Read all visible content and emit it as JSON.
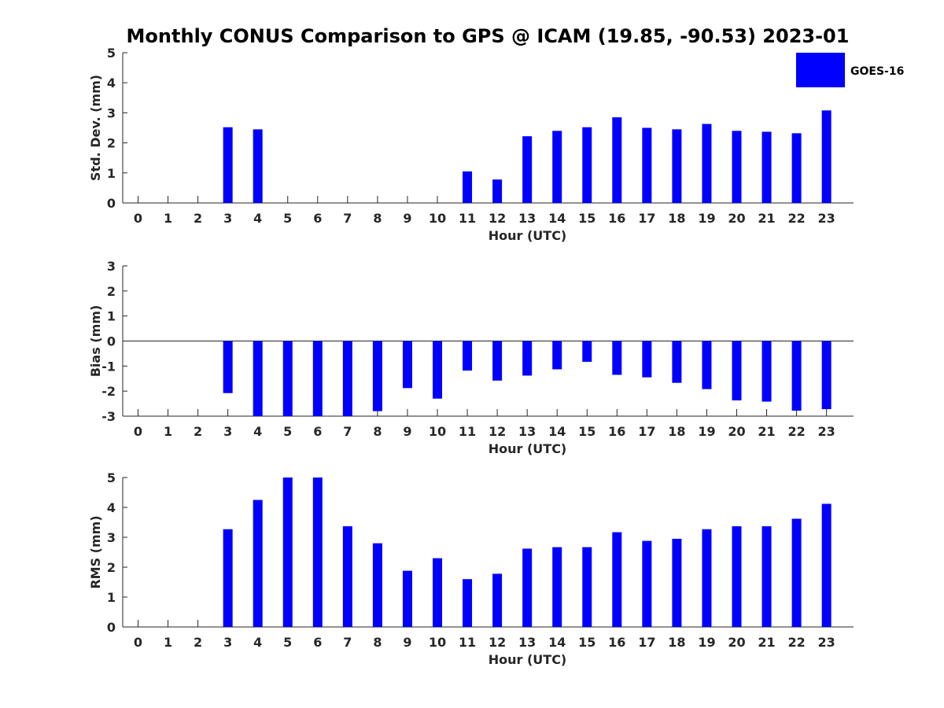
{
  "chart_data": [
    {
      "type": "bar",
      "title": "Monthly CONUS Comparison to GPS @ ICAM (19.85, -90.53) 2023-01",
      "xlabel": "Hour (UTC)",
      "ylabel": "Std. Dev. (mm)",
      "ylim": [
        0,
        5
      ],
      "yticks": [
        0,
        1,
        2,
        3,
        4,
        5
      ],
      "categories": [
        "0",
        "1",
        "2",
        "3",
        "4",
        "5",
        "6",
        "7",
        "8",
        "9",
        "10",
        "11",
        "12",
        "13",
        "14",
        "15",
        "16",
        "17",
        "18",
        "19",
        "20",
        "21",
        "22",
        "23"
      ],
      "series": [
        {
          "name": "GOES-16",
          "color": "#0000ff",
          "values": [
            null,
            null,
            null,
            2.52,
            2.45,
            null,
            null,
            null,
            null,
            null,
            null,
            1.05,
            0.78,
            2.22,
            2.4,
            2.52,
            2.85,
            2.5,
            2.45,
            2.63,
            2.4,
            2.37,
            2.32,
            3.08
          ]
        }
      ],
      "legend": {
        "position": "top-right",
        "entries": [
          "GOES-16"
        ]
      },
      "grid": false
    },
    {
      "type": "bar",
      "xlabel": "Hour (UTC)",
      "ylabel": "Bias (mm)",
      "ylim": [
        -3,
        3
      ],
      "yticks": [
        -3,
        -2,
        -1,
        0,
        1,
        2,
        3
      ],
      "categories": [
        "0",
        "1",
        "2",
        "3",
        "4",
        "5",
        "6",
        "7",
        "8",
        "9",
        "10",
        "11",
        "12",
        "13",
        "14",
        "15",
        "16",
        "17",
        "18",
        "19",
        "20",
        "21",
        "22",
        "23"
      ],
      "series": [
        {
          "name": "GOES-16",
          "color": "#0000ff",
          "values": [
            null,
            null,
            null,
            -2.08,
            -3.0,
            -3.0,
            -3.0,
            -3.0,
            -2.8,
            -1.88,
            -2.3,
            -1.18,
            -1.58,
            -1.38,
            -1.13,
            -0.83,
            -1.35,
            -1.45,
            -1.67,
            -1.92,
            -2.37,
            -2.42,
            -2.78,
            -2.72
          ]
        }
      ],
      "grid": false
    },
    {
      "type": "bar",
      "xlabel": "Hour (UTC)",
      "ylabel": "RMS (mm)",
      "ylim": [
        0,
        5
      ],
      "yticks": [
        0,
        1,
        2,
        3,
        4,
        5
      ],
      "categories": [
        "0",
        "1",
        "2",
        "3",
        "4",
        "5",
        "6",
        "7",
        "8",
        "9",
        "10",
        "11",
        "12",
        "13",
        "14",
        "15",
        "16",
        "17",
        "18",
        "19",
        "20",
        "21",
        "22",
        "23"
      ],
      "series": [
        {
          "name": "GOES-16",
          "color": "#0000ff",
          "values": [
            null,
            null,
            null,
            3.27,
            4.25,
            5.0,
            5.0,
            3.37,
            2.8,
            1.88,
            2.3,
            1.6,
            1.78,
            2.62,
            2.67,
            2.67,
            3.17,
            2.88,
            2.95,
            3.27,
            3.37,
            3.37,
            3.62,
            4.12
          ]
        }
      ],
      "grid": false
    }
  ]
}
